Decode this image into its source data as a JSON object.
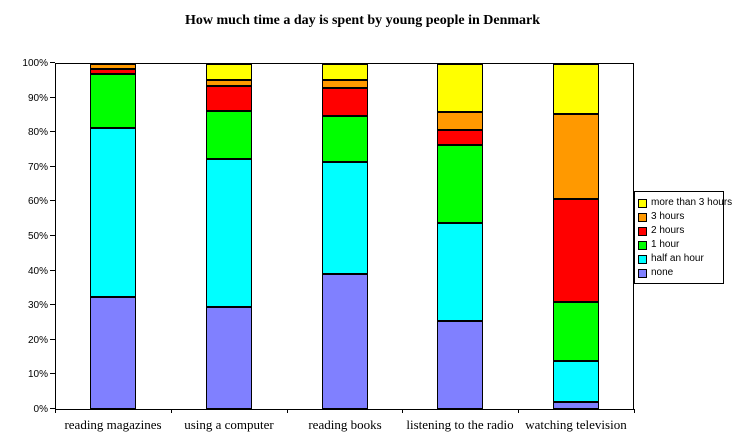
{
  "chart_data": {
    "type": "bar",
    "subtype": "stacked-100-percent",
    "title": "How much time a day is spent by young people in Denmark",
    "xlabel": "",
    "ylabel": "",
    "ylim": [
      0,
      100
    ],
    "grid": false,
    "legend_position": "right",
    "categories": [
      "reading magazines",
      "using a computer",
      "reading books",
      "listening to the radio",
      "watching television"
    ],
    "series": [
      {
        "name": "none",
        "color": "#8080FF",
        "values": [
          32.5,
          29.5,
          39.0,
          25.5,
          2.0
        ]
      },
      {
        "name": "half an hour",
        "color": "#00FFFF",
        "values": [
          49.0,
          43.0,
          32.5,
          28.5,
          12.0
        ]
      },
      {
        "name": "1 hour",
        "color": "#00FF00",
        "values": [
          15.5,
          14.0,
          13.5,
          22.5,
          17.0
        ]
      },
      {
        "name": "2 hours",
        "color": "#FF0000",
        "values": [
          1.5,
          7.0,
          8.0,
          4.5,
          30.0
        ]
      },
      {
        "name": "3 hours",
        "color": "#FF9900",
        "values": [
          1.5,
          2.0,
          2.5,
          5.0,
          24.5
        ]
      },
      {
        "name": "more than 3 hours",
        "color": "#FFFF00",
        "values": [
          0.0,
          4.5,
          4.5,
          14.0,
          14.5
        ]
      }
    ],
    "legend_order_top_to_bottom": [
      "more than 3 hours",
      "3 hours",
      "2 hours",
      "1 hour",
      "half an hour",
      "none"
    ],
    "y_tick_labels": [
      "0%",
      "10%",
      "20%",
      "30%",
      "40%",
      "50%",
      "60%",
      "70%",
      "80%",
      "90%",
      "100%"
    ]
  }
}
